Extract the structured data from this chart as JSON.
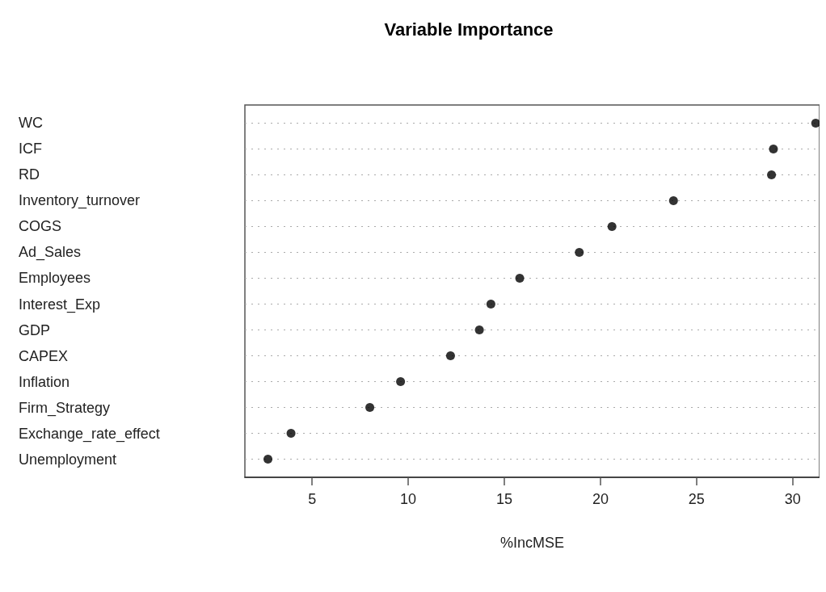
{
  "chart_data": {
    "type": "scatter",
    "orientation": "horizontal",
    "title": "Variable Importance",
    "xlabel": "%IncMSE",
    "categories": [
      "WC",
      "ICF",
      "RD",
      "Inventory_turnover",
      "COGS",
      "Ad_Sales",
      "Employees",
      "Interest_Exp",
      "GDP",
      "CAPEX",
      "Inflation",
      "Firm_Strategy",
      "Exchange_rate_effect",
      "Unemployment"
    ],
    "values": [
      31.2,
      29.0,
      28.9,
      23.8,
      20.6,
      18.9,
      15.8,
      14.3,
      13.7,
      12.2,
      9.6,
      8.0,
      3.9,
      2.7
    ],
    "color": "#000000",
    "marker": "circle",
    "xlim": [
      1.5,
      31.4
    ],
    "xticks": [
      5,
      10,
      15,
      20,
      25,
      30
    ],
    "grid": "y"
  }
}
